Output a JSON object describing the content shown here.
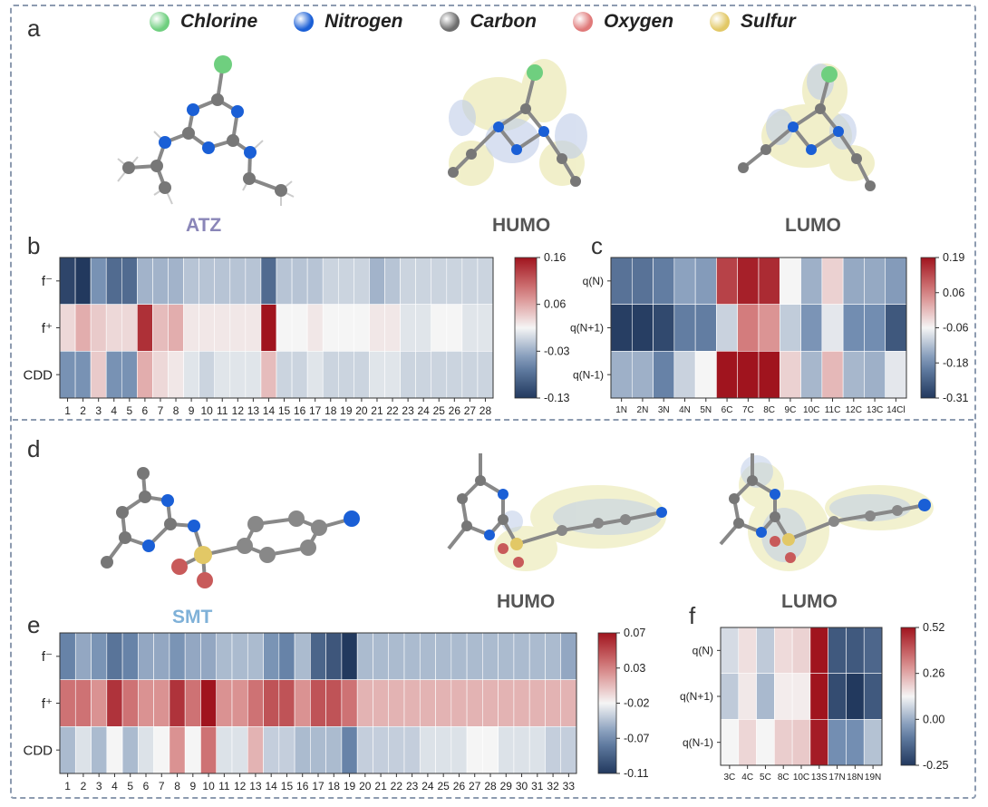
{
  "panel_letters": [
    "a",
    "b",
    "c",
    "d",
    "e",
    "f"
  ],
  "legend": [
    {
      "label": "Chlorine",
      "color": "#6fcf7f"
    },
    {
      "label": "Nitrogen",
      "color": "#1a5fd6"
    },
    {
      "label": "Carbon",
      "color": "#6e6e6e"
    },
    {
      "label": "Oxygen",
      "color": "#e07a7a"
    },
    {
      "label": "Sulfur",
      "color": "#e2c866"
    }
  ],
  "molecule_top": {
    "name": "ATZ",
    "name_color": "#8a86b8",
    "orbital_labels": [
      "HUMO",
      "LUMO"
    ]
  },
  "molecule_bottom": {
    "name": "SMT",
    "name_color": "#7fb1d8",
    "orbital_labels": [
      "HUMO",
      "LUMO"
    ]
  },
  "chart_data": [
    {
      "id": "b",
      "type": "heatmap",
      "rows": [
        "f⁻",
        "f⁺",
        "CDD"
      ],
      "columns": [
        "1",
        "2",
        "3",
        "4",
        "5",
        "6",
        "7",
        "8",
        "9",
        "10",
        "11",
        "12",
        "13",
        "14",
        "15",
        "16",
        "17",
        "18",
        "19",
        "20",
        "21",
        "22",
        "23",
        "24",
        "25",
        "26",
        "27",
        "28"
      ],
      "values": [
        [
          -0.12,
          -0.13,
          -0.06,
          -0.09,
          -0.09,
          -0.04,
          -0.04,
          -0.04,
          -0.03,
          -0.03,
          -0.03,
          -0.03,
          -0.03,
          -0.09,
          -0.03,
          -0.03,
          -0.03,
          -0.02,
          -0.02,
          -0.02,
          -0.04,
          -0.03,
          -0.02,
          -0.02,
          -0.02,
          -0.02,
          -0.02,
          -0.02
        ],
        [
          0.02,
          0.05,
          0.03,
          0.02,
          0.02,
          0.14,
          0.04,
          0.05,
          0.01,
          0.01,
          0.01,
          0.01,
          0.01,
          0.16,
          0.0,
          0.0,
          0.01,
          0.0,
          0.0,
          0.0,
          0.01,
          0.01,
          -0.01,
          -0.01,
          0.0,
          0.0,
          -0.01,
          -0.01
        ],
        [
          -0.06,
          -0.06,
          0.03,
          -0.06,
          -0.06,
          0.05,
          0.02,
          0.01,
          -0.01,
          -0.02,
          -0.01,
          -0.01,
          -0.01,
          0.04,
          -0.02,
          -0.02,
          -0.01,
          -0.02,
          -0.02,
          -0.02,
          -0.01,
          -0.01,
          -0.02,
          -0.02,
          -0.02,
          -0.02,
          -0.02,
          -0.02
        ]
      ],
      "colorbar_ticks": [
        "0.16",
        "0.06",
        "-0.03",
        "-0.13"
      ],
      "vmin": -0.13,
      "vmax": 0.16
    },
    {
      "id": "c",
      "type": "heatmap",
      "rows": [
        "q(N)",
        "q(N+1)",
        "q(N-1)"
      ],
      "columns": [
        "1N",
        "2N",
        "3N",
        "4N",
        "5N",
        "6C",
        "7C",
        "8C",
        "9C",
        "10C",
        "11C",
        "12C",
        "13C",
        "14Cl"
      ],
      "values": [
        [
          -0.2,
          -0.2,
          -0.18,
          -0.12,
          -0.13,
          0.15,
          0.18,
          0.17,
          0.0,
          -0.1,
          0.03,
          -0.11,
          -0.11,
          -0.13
        ],
        [
          -0.3,
          -0.3,
          -0.28,
          -0.18,
          -0.18,
          -0.05,
          0.1,
          0.08,
          -0.06,
          -0.14,
          -0.02,
          -0.15,
          -0.15,
          -0.25
        ],
        [
          -0.1,
          -0.1,
          -0.17,
          -0.05,
          0.0,
          0.19,
          0.19,
          0.19,
          0.03,
          -0.09,
          0.05,
          -0.09,
          -0.1,
          -0.02
        ]
      ],
      "colorbar_ticks": [
        "0.19",
        "0.06",
        "-0.06",
        "-0.18",
        "-0.31"
      ],
      "vmin": -0.31,
      "vmax": 0.19
    },
    {
      "id": "e",
      "type": "heatmap",
      "rows": [
        "f⁻",
        "f⁺",
        "CDD"
      ],
      "columns": [
        "1",
        "2",
        "3",
        "4",
        "5",
        "6",
        "7",
        "8",
        "9",
        "10",
        "11",
        "12",
        "13",
        "14",
        "15",
        "16",
        "17",
        "18",
        "19",
        "20",
        "21",
        "22",
        "23",
        "24",
        "25",
        "26",
        "27",
        "28",
        "29",
        "30",
        "31",
        "32",
        "33"
      ],
      "values": [
        [
          -0.06,
          -0.04,
          -0.05,
          -0.07,
          -0.06,
          -0.04,
          -0.04,
          -0.05,
          -0.04,
          -0.04,
          -0.03,
          -0.03,
          -0.03,
          -0.05,
          -0.06,
          -0.03,
          -0.08,
          -0.09,
          -0.11,
          -0.03,
          -0.03,
          -0.03,
          -0.03,
          -0.03,
          -0.03,
          -0.03,
          -0.03,
          -0.03,
          -0.03,
          -0.03,
          -0.03,
          -0.03,
          -0.04
        ],
        [
          0.04,
          0.04,
          0.03,
          0.06,
          0.04,
          0.03,
          0.03,
          0.06,
          0.04,
          0.07,
          0.03,
          0.03,
          0.04,
          0.05,
          0.05,
          0.03,
          0.05,
          0.05,
          0.04,
          0.02,
          0.02,
          0.02,
          0.02,
          0.02,
          0.02,
          0.02,
          0.02,
          0.02,
          0.02,
          0.02,
          0.02,
          0.02,
          0.02
        ],
        [
          -0.03,
          -0.01,
          -0.03,
          0.0,
          -0.03,
          -0.01,
          0.0,
          0.03,
          0.0,
          0.04,
          -0.01,
          -0.01,
          0.02,
          -0.02,
          -0.02,
          -0.03,
          -0.03,
          -0.03,
          -0.06,
          -0.02,
          -0.02,
          -0.02,
          -0.02,
          -0.01,
          -0.01,
          -0.01,
          0.0,
          0.0,
          -0.01,
          -0.01,
          -0.01,
          -0.02,
          -0.02
        ]
      ],
      "colorbar_ticks": [
        "0.07",
        "0.03",
        "-0.02",
        "-0.07",
        "-0.11"
      ],
      "vmin": -0.11,
      "vmax": 0.07
    },
    {
      "id": "f",
      "type": "heatmap",
      "rows": [
        "q(N)",
        "q(N+1)",
        "q(N-1)"
      ],
      "columns": [
        "3C",
        "4C",
        "5C",
        "8C",
        "10C",
        "13S",
        "17N",
        "18N",
        "19N"
      ],
      "values": [
        [
          -0.03,
          0.05,
          -0.05,
          0.06,
          0.08,
          0.52,
          -0.2,
          -0.2,
          -0.18
        ],
        [
          -0.05,
          0.03,
          -0.07,
          0.02,
          0.02,
          0.52,
          -0.22,
          -0.25,
          -0.2
        ],
        [
          0.0,
          0.07,
          0.0,
          0.09,
          0.1,
          0.5,
          -0.12,
          -0.12,
          -0.06
        ]
      ],
      "colorbar_ticks": [
        "0.52",
        "0.26",
        "0.00",
        "-0.25"
      ],
      "vmin": -0.25,
      "vmax": 0.52
    }
  ]
}
